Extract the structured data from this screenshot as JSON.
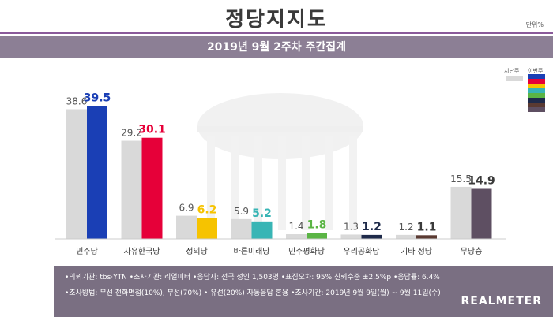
{
  "header": {
    "title": "정당지지도",
    "unit": "단위%",
    "subtitle": "2019년 9월 2주차 주간집계"
  },
  "legend": {
    "prev_label": "지난주",
    "cur_label": "이번주",
    "prev_color": "#d9d9d9",
    "cur_colors": [
      "#1a3fb5",
      "#e60039",
      "#f6c300",
      "#38b5b5",
      "#5bb545",
      "#1e2a4a",
      "#5a3a32",
      "#5e4f62"
    ]
  },
  "chart_data": {
    "type": "bar",
    "categories": [
      "민주당",
      "자유한국당",
      "정의당",
      "바른미래당",
      "민주평화당",
      "우리공화당",
      "기타 정당",
      "무당층"
    ],
    "series": [
      {
        "name": "지난주",
        "values": [
          38.6,
          29.2,
          6.9,
          5.9,
          1.4,
          1.3,
          1.2,
          15.5
        ]
      },
      {
        "name": "이번주",
        "values": [
          39.5,
          30.1,
          6.2,
          5.2,
          1.8,
          1.2,
          1.1,
          14.9
        ]
      }
    ],
    "prev_labels": [
      "38.6",
      "29.2",
      "6.9",
      "5.9",
      "1.4",
      "1.3",
      "1.2",
      "15.5"
    ],
    "cur_labels": [
      "39.5",
      "30.1",
      "6.2",
      "5.2",
      "1.8",
      "1.2",
      "1.1",
      "14.9"
    ],
    "cur_label_colors": [
      "#1a3fb5",
      "#e60039",
      "#f6c300",
      "#38b5b5",
      "#5bb545",
      "#1e2a4a",
      "#3a3a3a",
      "#3a3a3a"
    ],
    "ylim": [
      0,
      42
    ]
  },
  "notes": {
    "line1": "•의뢰기관: tbs·YTN  •조사기관: 리얼미터  •응답자: 전국 성인 1,503명  •표집오차: 95% 신뢰수준 ±2.5%p  •응답률: 6.4%",
    "line2": "•조사방법: 무선 전화면접(10%), 무선(70%) • 유선(20%) 자동응답 혼용  •조사기간: 2019년 9월 9일(월) ~ 9월 11일(수)"
  },
  "brand": "REALMETER"
}
